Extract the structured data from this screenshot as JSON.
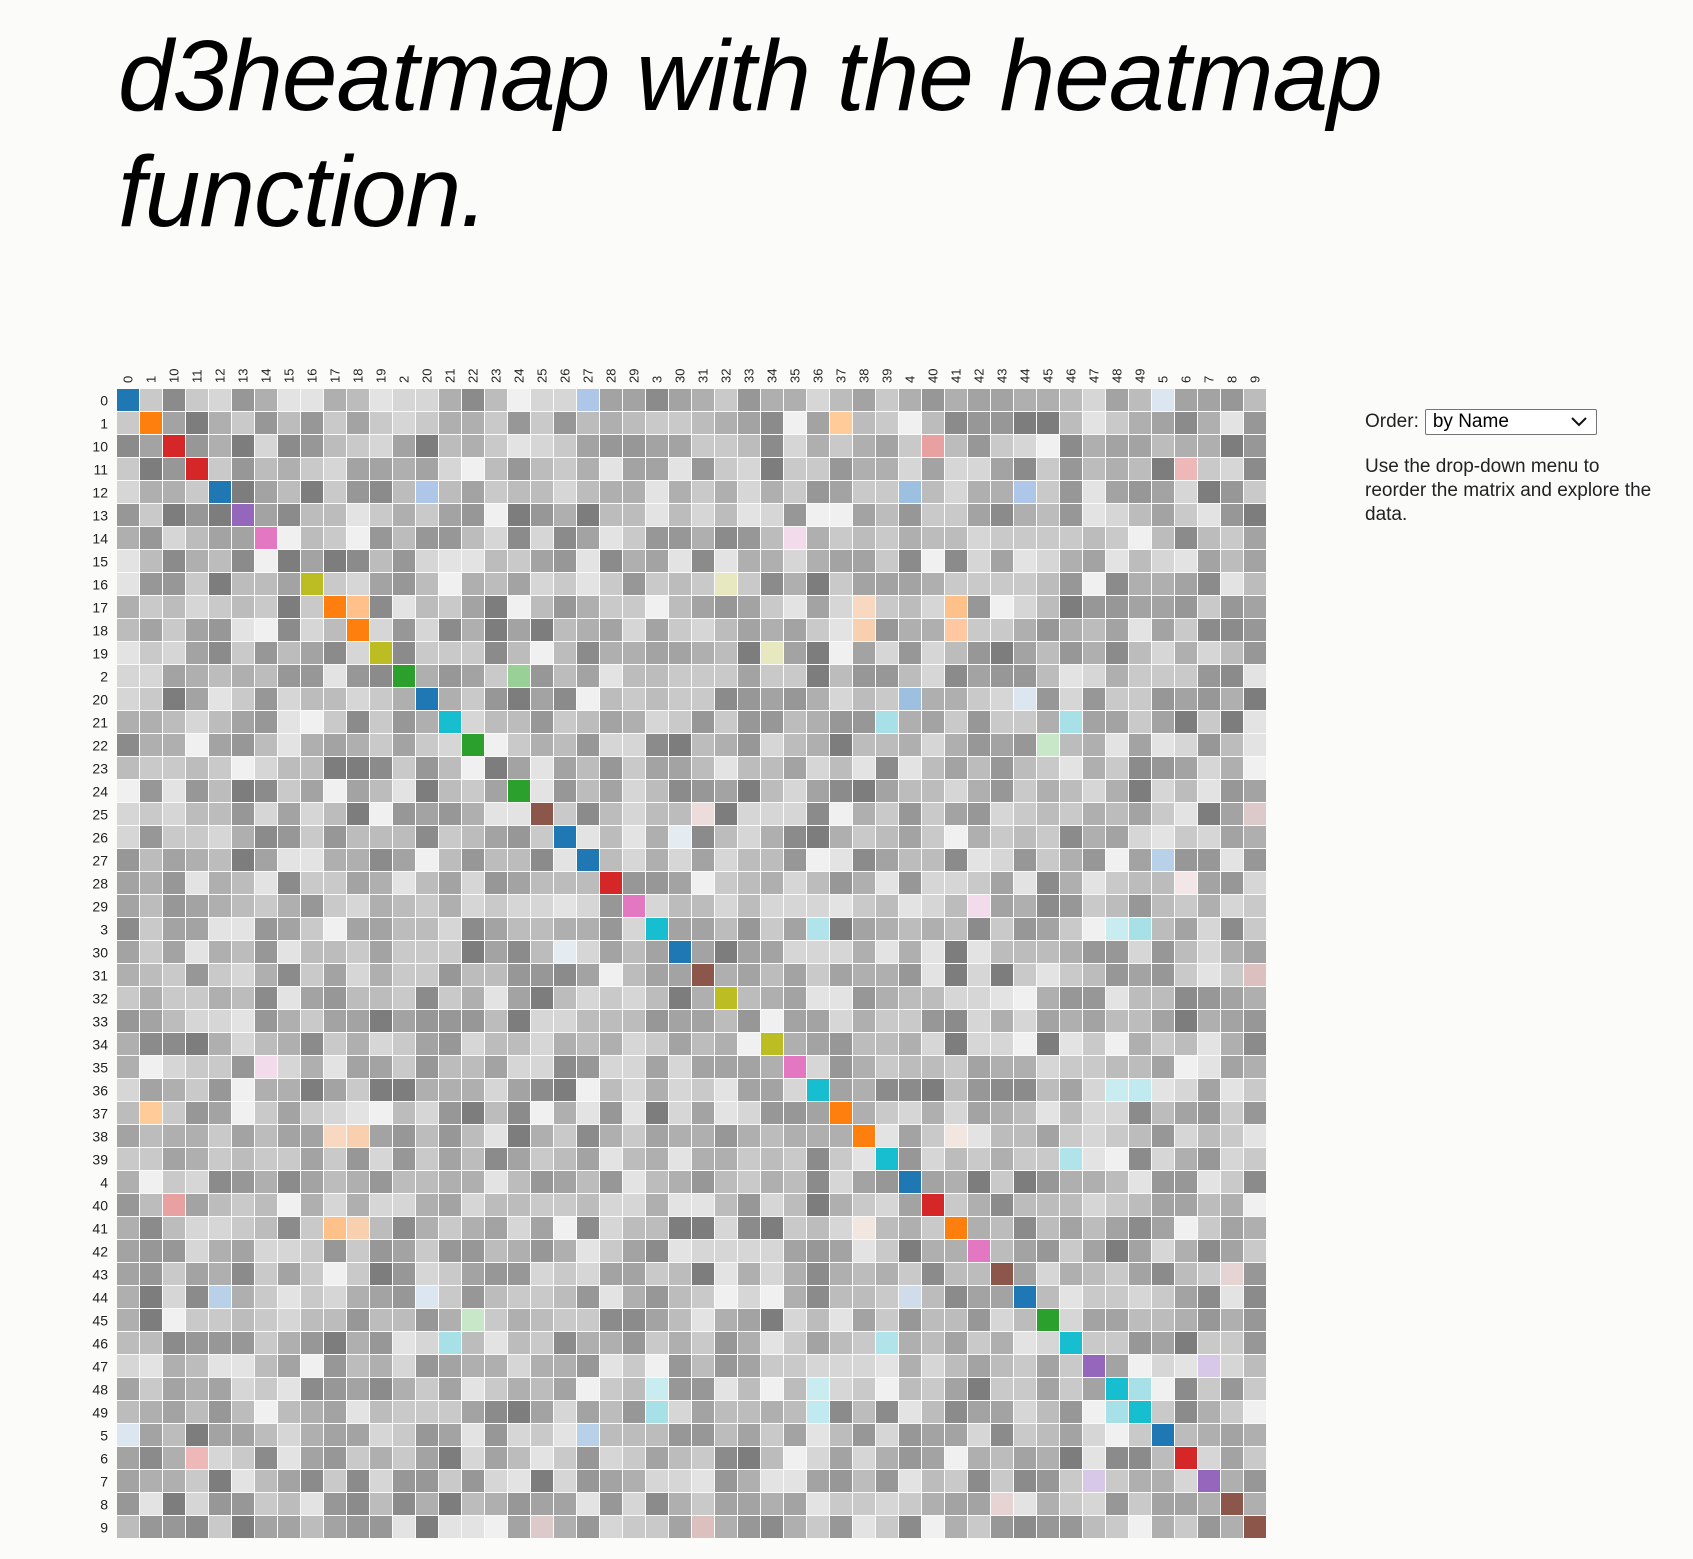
{
  "page": {
    "title": "d3heatmap with the heatmap function."
  },
  "controls": {
    "order_label": "Order:",
    "order_selected": "by Name",
    "help_text": "Use the drop-down menu to reorder the matrix and explore the data."
  },
  "icons": {
    "dropdown": "chevron-down-icon"
  },
  "colors": {
    "background": "#fbfbf9",
    "cell_gray_levels": [
      "#f0f0f0",
      "#e3e3e3",
      "#d6d6d6",
      "#c9c9c9",
      "#bcbcbc",
      "#afafaf",
      "#a3a3a3",
      "#979797",
      "#8b8b8b",
      "#7d7d7d"
    ],
    "group_colors": [
      "#1f77b4",
      "#ff7f0e",
      "#2ca02c",
      "#d62728",
      "#9467bd",
      "#8c564b",
      "#e377c2",
      "#7f7f7f",
      "#bcbd22",
      "#17becf"
    ]
  },
  "chart_data": {
    "type": "heatmap",
    "title": "",
    "labels": [
      "0",
      "1",
      "10",
      "11",
      "12",
      "13",
      "14",
      "15",
      "16",
      "17",
      "18",
      "19",
      "2",
      "20",
      "21",
      "22",
      "23",
      "24",
      "25",
      "26",
      "27",
      "28",
      "29",
      "3",
      "30",
      "31",
      "32",
      "33",
      "34",
      "35",
      "36",
      "37",
      "38",
      "39",
      "4",
      "40",
      "41",
      "42",
      "43",
      "44",
      "45",
      "46",
      "47",
      "48",
      "49",
      "5",
      "6",
      "7",
      "8",
      "9"
    ],
    "diagonal_colors": [
      "#1f77b4",
      "#ff7f0e",
      "#d62728",
      "#d62728",
      "#1f77b4",
      "#9467bd",
      "#e377c2",
      "#7d7d7d",
      "#bcbd22",
      "#ff7f0e",
      "#ff7f0e",
      "#bcbd22",
      "#2ca02c",
      "#1f77b4",
      "#17becf",
      "#2ca02c",
      "#7d7d7d",
      "#2ca02c",
      "#8c564b",
      "#1f77b4",
      "#1f77b4",
      "#d62728",
      "#e377c2",
      "#17becf",
      "#1f77b4",
      "#8c564b",
      "#bcbd22",
      "#979797",
      "#bcbd22",
      "#e377c2",
      "#17becf",
      "#ff7f0e",
      "#ff7f0e",
      "#17becf",
      "#1f77b4",
      "#d62728",
      "#ff7f0e",
      "#e377c2",
      "#8c564b",
      "#1f77b4",
      "#2ca02c",
      "#17becf",
      "#9467bd",
      "#17becf",
      "#17becf",
      "#1f77b4",
      "#d62728",
      "#9467bd",
      "#8c564b",
      "#8c564b"
    ],
    "shared_group_cells": [
      {
        "row": "0",
        "col": "27",
        "color": "#aec7e8"
      },
      {
        "row": "0",
        "col": "5",
        "color": "#dce6f0"
      },
      {
        "row": "1",
        "col": "37",
        "color": "#ffcc99"
      },
      {
        "row": "10",
        "col": "40",
        "color": "#e8a0a0"
      },
      {
        "row": "11",
        "col": "6",
        "color": "#efb8b8"
      },
      {
        "row": "12",
        "col": "20",
        "color": "#aec7e8"
      },
      {
        "row": "12",
        "col": "4",
        "color": "#9ec0e0"
      },
      {
        "row": "12",
        "col": "44",
        "color": "#aec7e8"
      },
      {
        "row": "14",
        "col": "35",
        "color": "#f2dcec"
      },
      {
        "row": "16",
        "col": "32",
        "color": "#e8e8c0"
      },
      {
        "row": "17",
        "col": "18",
        "color": "#ffc08a"
      },
      {
        "row": "17",
        "col": "38",
        "color": "#f8d8c0"
      },
      {
        "row": "17",
        "col": "41",
        "color": "#ffc08a"
      },
      {
        "row": "18",
        "col": "38",
        "color": "#f8d0b0"
      },
      {
        "row": "18",
        "col": "41",
        "color": "#ffc8a0"
      },
      {
        "row": "19",
        "col": "34",
        "color": "#e8e8c0"
      },
      {
        "row": "2",
        "col": "24",
        "color": "#98d098"
      },
      {
        "row": "20",
        "col": "4",
        "color": "#9ec0e0"
      },
      {
        "row": "20",
        "col": "44",
        "color": "#dce6f0"
      },
      {
        "row": "21",
        "col": "39",
        "color": "#a8e0e8"
      },
      {
        "row": "21",
        "col": "46",
        "color": "#a8e0e8"
      },
      {
        "row": "22",
        "col": "45",
        "color": "#c8e6c8"
      },
      {
        "row": "25",
        "col": "31",
        "color": "#ecdcdc"
      },
      {
        "row": "25",
        "col": "9",
        "color": "#dccaca"
      },
      {
        "row": "26",
        "col": "30",
        "color": "#e4ecf2"
      },
      {
        "row": "27",
        "col": "5",
        "color": "#b8d0e8"
      },
      {
        "row": "28",
        "col": "6",
        "color": "#f2e6e6"
      },
      {
        "row": "29",
        "col": "42",
        "color": "#f2dcec"
      },
      {
        "row": "3",
        "col": "36",
        "color": "#b0e4ea"
      },
      {
        "row": "3",
        "col": "48",
        "color": "#c8ecf0"
      },
      {
        "row": "3",
        "col": "49",
        "color": "#a8e0e8"
      },
      {
        "row": "30",
        "col": "26",
        "color": "#e4ecf2"
      },
      {
        "row": "31",
        "col": "9",
        "color": "#dcc0c0"
      },
      {
        "row": "35",
        "col": "14",
        "color": "#f2dcec"
      },
      {
        "row": "36",
        "col": "48",
        "color": "#c8ecf0"
      },
      {
        "row": "36",
        "col": "49",
        "color": "#c0eaf0"
      },
      {
        "row": "37",
        "col": "1",
        "color": "#ffcc99"
      },
      {
        "row": "38",
        "col": "17",
        "color": "#f8d8c0"
      },
      {
        "row": "38",
        "col": "18",
        "color": "#f8d0b0"
      },
      {
        "row": "38",
        "col": "41",
        "color": "#f2e6e0"
      },
      {
        "row": "39",
        "col": "46",
        "color": "#b0e4ea"
      },
      {
        "row": "40",
        "col": "10",
        "color": "#e8a0a0"
      },
      {
        "row": "41",
        "col": "17",
        "color": "#ffc08a"
      },
      {
        "row": "41",
        "col": "18",
        "color": "#f8d0b0"
      },
      {
        "row": "41",
        "col": "38",
        "color": "#f2e6e0"
      },
      {
        "row": "43",
        "col": "8",
        "color": "#e6d4d4"
      },
      {
        "row": "44",
        "col": "12",
        "color": "#b8d0e8"
      },
      {
        "row": "44",
        "col": "20",
        "color": "#dce6f0"
      },
      {
        "row": "44",
        "col": "4",
        "color": "#d0dcea"
      },
      {
        "row": "45",
        "col": "22",
        "color": "#c8e6c8"
      },
      {
        "row": "46",
        "col": "21",
        "color": "#a8e0e8"
      },
      {
        "row": "46",
        "col": "39",
        "color": "#b0e4ea"
      },
      {
        "row": "47",
        "col": "7",
        "color": "#d8c8e8"
      },
      {
        "row": "48",
        "col": "3",
        "color": "#c8ecf0"
      },
      {
        "row": "48",
        "col": "36",
        "color": "#c8ecf0"
      },
      {
        "row": "48",
        "col": "49",
        "color": "#a8e0e8"
      },
      {
        "row": "49",
        "col": "3",
        "color": "#a8e0e8"
      },
      {
        "row": "49",
        "col": "36",
        "color": "#c0eaf0"
      },
      {
        "row": "49",
        "col": "48",
        "color": "#a8e0e8"
      },
      {
        "row": "5",
        "col": "0",
        "color": "#dce6f0"
      },
      {
        "row": "5",
        "col": "27",
        "color": "#b8d0e8"
      },
      {
        "row": "6",
        "col": "11",
        "color": "#efb8b8"
      },
      {
        "row": "7",
        "col": "47",
        "color": "#d8c8e8"
      },
      {
        "row": "8",
        "col": "43",
        "color": "#e6d4d4"
      },
      {
        "row": "9",
        "col": "25",
        "color": "#dccaca"
      },
      {
        "row": "9",
        "col": "31",
        "color": "#dcc0c0"
      }
    ]
  }
}
